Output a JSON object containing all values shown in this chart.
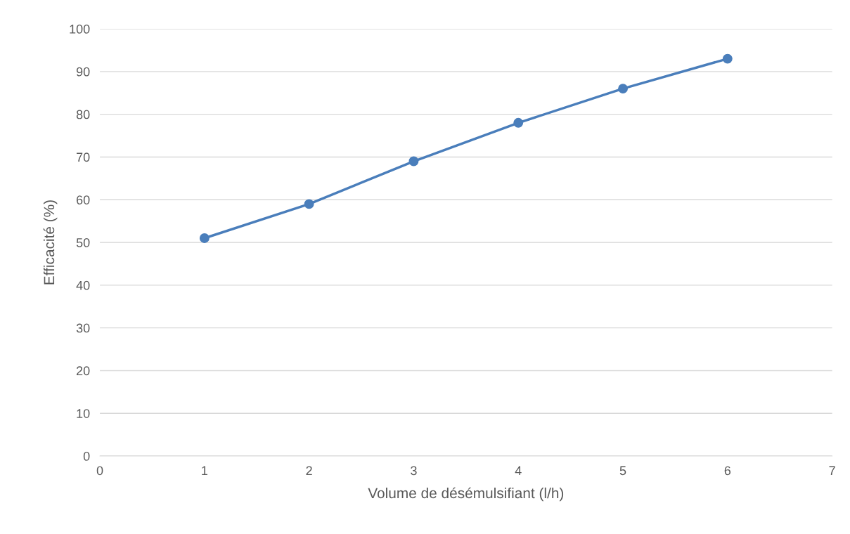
{
  "chart_data": {
    "type": "line",
    "xlabel": "Volume de désémulsifiant (l/h)",
    "ylabel": "Efficacité (%)",
    "x": [
      1,
      2,
      3,
      4,
      5,
      6
    ],
    "series": [
      {
        "color": "#4a7ebb",
        "values": [
          51,
          59,
          69,
          78,
          86,
          93
        ]
      }
    ],
    "xlim": [
      0,
      7
    ],
    "xticks": [
      0,
      1,
      2,
      3,
      4,
      5,
      6,
      7
    ],
    "ylim": [
      0,
      100
    ],
    "yticks": [
      0,
      10,
      20,
      30,
      40,
      50,
      60,
      70,
      80,
      90,
      100
    ],
    "grid": "y",
    "marker": "circle",
    "line_style": "solid"
  }
}
